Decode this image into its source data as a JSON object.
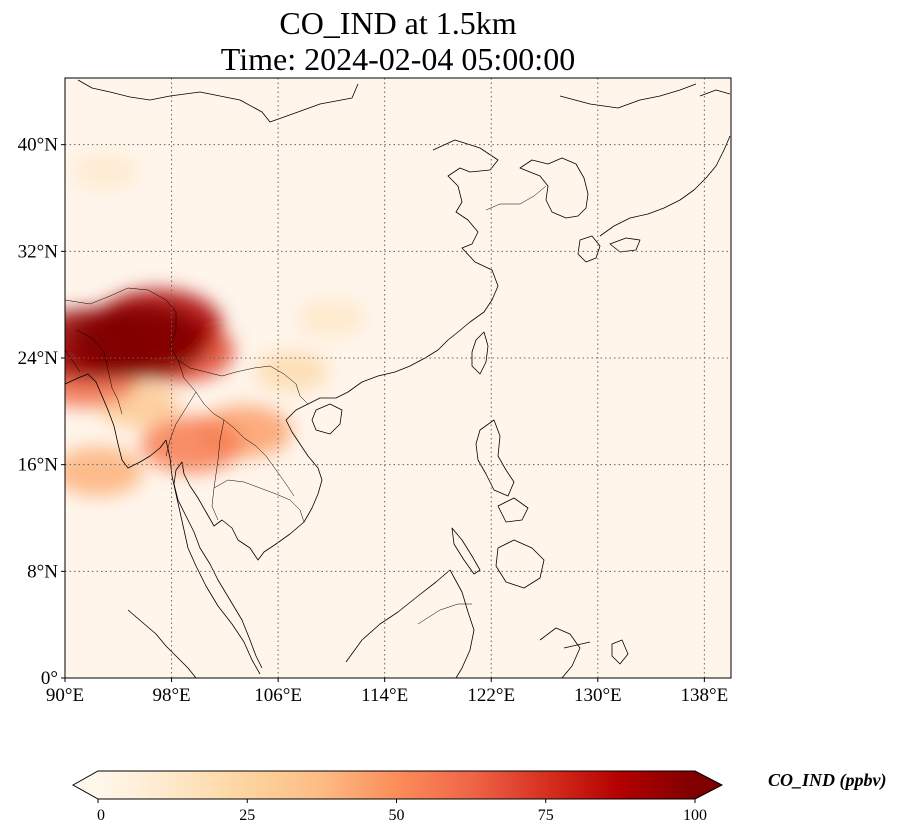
{
  "title": {
    "line1": "CO_IND at 1.5km",
    "line2": "Time: 2024-02-04 05:00:00"
  },
  "map": {
    "lon_range": [
      90,
      140
    ],
    "lat_range": [
      0,
      45
    ],
    "lon_ticks": [
      {
        "value": 90,
        "label": "90°E"
      },
      {
        "value": 98,
        "label": "98°E"
      },
      {
        "value": 106,
        "label": "106°E"
      },
      {
        "value": 114,
        "label": "114°E"
      },
      {
        "value": 122,
        "label": "122°E"
      },
      {
        "value": 130,
        "label": "130°E"
      },
      {
        "value": 138,
        "label": "138°E"
      }
    ],
    "lat_ticks": [
      {
        "value": 0,
        "label": "0°"
      },
      {
        "value": 8,
        "label": "8°N"
      },
      {
        "value": 16,
        "label": "16°N"
      },
      {
        "value": 24,
        "label": "24°N"
      },
      {
        "value": 32,
        "label": "32°N"
      },
      {
        "value": 40,
        "label": "40°N"
      }
    ],
    "gridlines": "dotted",
    "background_color": "#fff5eb",
    "plumes": [
      {
        "lon": 95.5,
        "lat": 25.2,
        "value": 100
      },
      {
        "lon": 92.0,
        "lat": 25.0,
        "value": 95
      },
      {
        "lon": 97.0,
        "lat": 26.5,
        "value": 90
      },
      {
        "lon": 98.5,
        "lat": 24.5,
        "value": 70
      },
      {
        "lon": 91.5,
        "lat": 22.5,
        "value": 60
      },
      {
        "lon": 99.5,
        "lat": 17.5,
        "value": 55
      },
      {
        "lon": 103.5,
        "lat": 18.5,
        "value": 45
      },
      {
        "lon": 92.5,
        "lat": 15.5,
        "value": 40
      },
      {
        "lon": 95.5,
        "lat": 20.5,
        "value": 30
      },
      {
        "lon": 107.0,
        "lat": 23.0,
        "value": 20
      },
      {
        "lon": 110.0,
        "lat": 27.0,
        "value": 12
      },
      {
        "lon": 93.0,
        "lat": 38.0,
        "value": 10
      }
    ]
  },
  "colorbar": {
    "label": "CO_IND (ppbv)",
    "min": 0,
    "max": 100,
    "extend": "both",
    "colormap": "OrRd",
    "colors": [
      "#fff7ec",
      "#fee8c8",
      "#fdd49e",
      "#fdbb84",
      "#fc8d59",
      "#ef6548",
      "#d7301f",
      "#b30000",
      "#7f0000"
    ],
    "ticks": [
      {
        "value": 0,
        "label": "0"
      },
      {
        "value": 25,
        "label": "25"
      },
      {
        "value": 50,
        "label": "50"
      },
      {
        "value": 75,
        "label": "75"
      },
      {
        "value": 100,
        "label": "100"
      }
    ]
  }
}
